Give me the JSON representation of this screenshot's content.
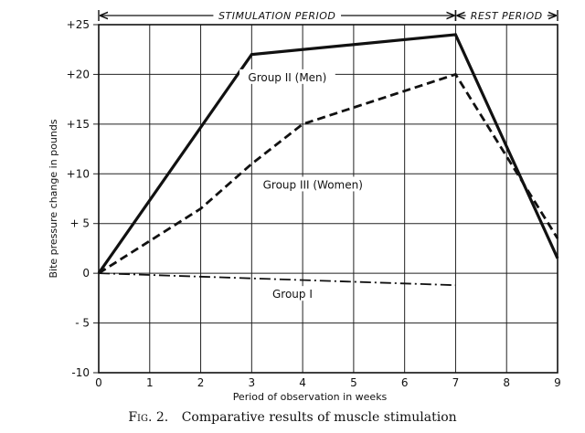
{
  "chart_data": {
    "type": "line",
    "ylabel": "Bite pressure change in pounds",
    "xlabel": "Period of observation in weeks",
    "x_ticks": [
      0,
      1,
      2,
      3,
      4,
      5,
      6,
      7,
      8,
      9
    ],
    "y_ticks": [
      {
        "value": 25,
        "label": "+25"
      },
      {
        "value": 20,
        "label": "+20"
      },
      {
        "value": 15,
        "label": "+15"
      },
      {
        "value": 10,
        "label": "+10"
      },
      {
        "value": 5,
        "label": "+ 5"
      },
      {
        "value": 0,
        "label": "0"
      },
      {
        "value": -5,
        "label": "- 5"
      },
      {
        "value": -10,
        "label": "-10"
      }
    ],
    "xlim": [
      0,
      9
    ],
    "ylim": [
      -10,
      25
    ],
    "grid": true,
    "periods": [
      {
        "label": "STIMULATION PERIOD",
        "start": 0,
        "end": 7
      },
      {
        "label": "REST PERIOD",
        "start": 7,
        "end": 9
      }
    ],
    "series": [
      {
        "name": "Group II (Men)",
        "style": "solid",
        "label_at": [
          3.7,
          19.5
        ],
        "x": [
          0,
          3,
          7,
          9
        ],
        "y": [
          0,
          22,
          24,
          1.5
        ]
      },
      {
        "name": "Group III (Women)",
        "style": "dashed",
        "label_at": [
          4.2,
          8.7
        ],
        "x": [
          0,
          2,
          3,
          4,
          7,
          9
        ],
        "y": [
          0,
          6.5,
          11,
          15,
          20,
          3.5
        ]
      },
      {
        "name": "Group I",
        "style": "dashdot",
        "label_at": [
          3.8,
          -2.3
        ],
        "x": [
          0,
          7
        ],
        "y": [
          0,
          -1.2
        ]
      }
    ]
  },
  "caption": {
    "figure": "Fig. 2.",
    "text": "Comparative results of muscle stimulation"
  }
}
